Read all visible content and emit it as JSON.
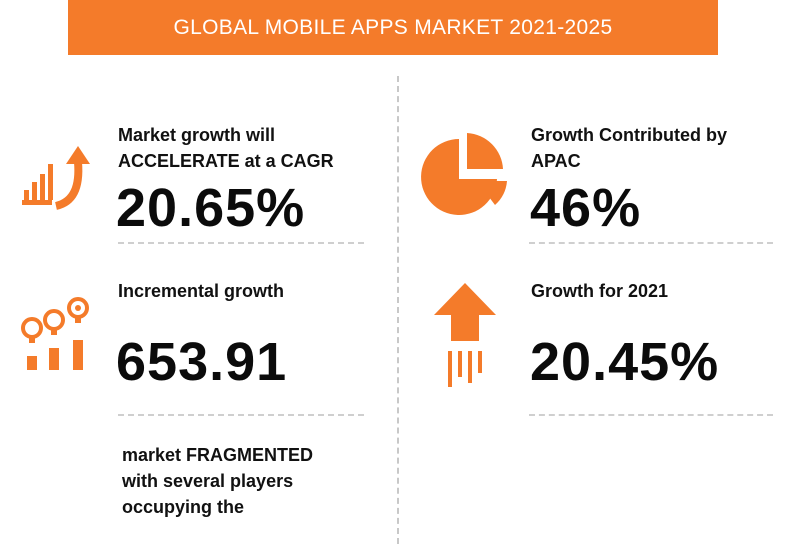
{
  "header": {
    "title": "GLOBAL MOBILE APPS MARKET 2021-2025"
  },
  "colors": {
    "accent": "#f47b2a",
    "text": "#111111",
    "divider": "#cfcfcf"
  },
  "stats": [
    {
      "icon": "growth-chart-arrow-icon",
      "label_lines": [
        "Market growth will",
        "ACCELERATE at a CAGR"
      ],
      "value": "20.65%"
    },
    {
      "icon": "pie-chart-icon",
      "label_lines": [
        "Growth Contributed by",
        "APAC"
      ],
      "value": "46%"
    },
    {
      "icon": "lightbulbs-idea-icon",
      "label_lines": [
        "Incremental growth"
      ],
      "value": "653.91"
    },
    {
      "icon": "rocket-up-arrow-icon",
      "label_lines": [
        "Growth for 2021"
      ],
      "value": "20.45%"
    }
  ],
  "note": {
    "lines": [
      "market FRAGMENTED",
      "with several players",
      "occupying the"
    ]
  }
}
